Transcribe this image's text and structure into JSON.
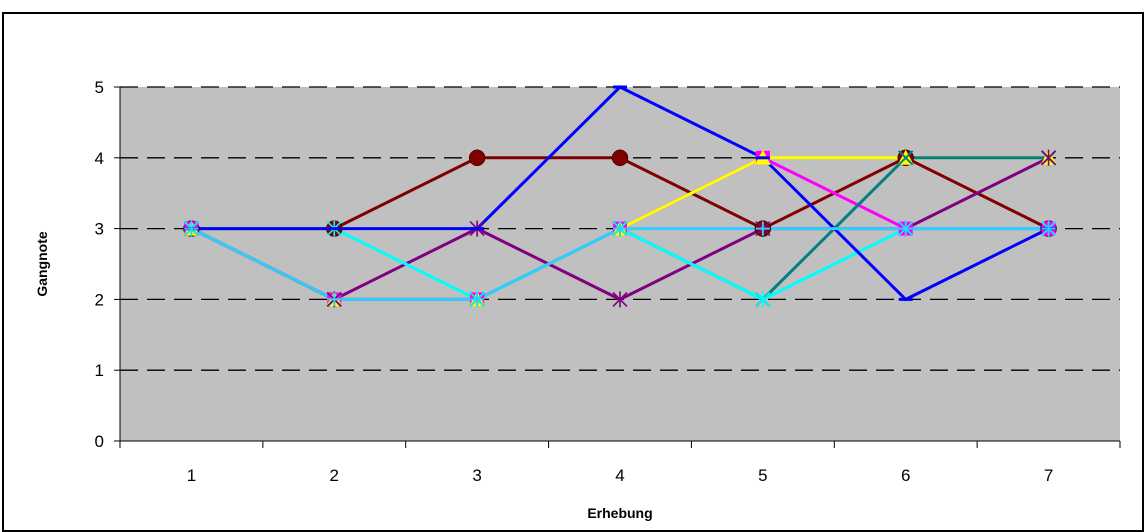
{
  "chart_data": {
    "type": "line",
    "title": "",
    "xlabel": "Erhebung",
    "ylabel": "Gangnote",
    "categories": [
      "1",
      "2",
      "3",
      "4",
      "5",
      "6",
      "7"
    ],
    "ylim": [
      0,
      5
    ],
    "yticks": [
      "0",
      "1",
      "2",
      "3",
      "4",
      "5"
    ],
    "grid": "dashed horizontal",
    "plot_background": "#c0c0c0",
    "series": [
      {
        "color": "#800000",
        "marker": "circle",
        "values": [
          3,
          3,
          4,
          4,
          3,
          4,
          3
        ]
      },
      {
        "color": "#ff00ff",
        "marker": "square",
        "values": [
          3,
          2,
          2,
          3,
          4,
          3,
          3
        ]
      },
      {
        "color": "#ffff00",
        "marker": "triangle",
        "values": [
          3,
          2,
          2,
          3,
          4,
          4,
          4
        ]
      },
      {
        "color": "#008080",
        "marker": "x",
        "values": [
          3,
          2,
          2,
          3,
          2,
          4,
          4
        ]
      },
      {
        "color": "#800080",
        "marker": "star",
        "values": [
          3,
          2,
          3,
          2,
          3,
          3,
          4
        ]
      },
      {
        "color": "#00ffff",
        "marker": "star",
        "values": [
          3,
          3,
          2,
          3,
          2,
          3,
          3
        ]
      },
      {
        "color": "#0000ff",
        "marker": "dash",
        "values": [
          3,
          3,
          3,
          5,
          4,
          2,
          3
        ]
      },
      {
        "color": "#33ccff",
        "marker": "plus",
        "values": [
          3,
          2,
          2,
          3,
          3,
          3,
          3
        ]
      }
    ]
  }
}
